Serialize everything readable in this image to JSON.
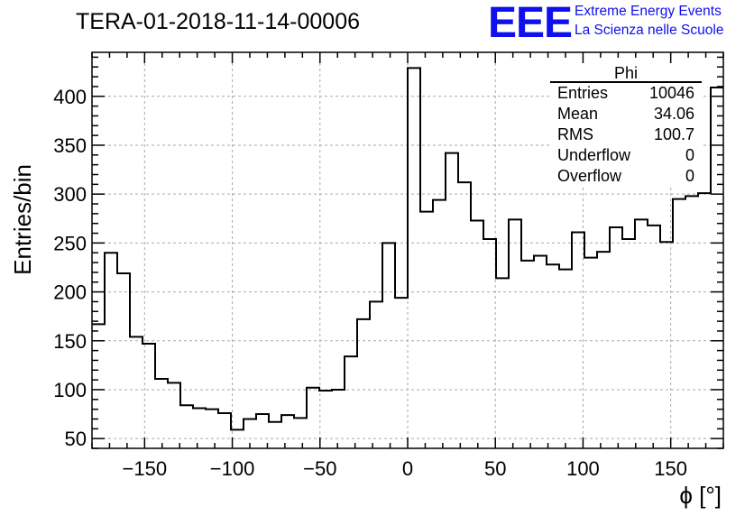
{
  "chart_data": {
    "type": "histogram",
    "title": "TERA-01-2018-11-14-00006",
    "xlabel": "ϕ [°]",
    "ylabel": "Entries/bin",
    "xlim": [
      -180,
      180
    ],
    "ylim": [
      40,
      445
    ],
    "grid": true,
    "bin_edges_start": -180,
    "bin_width": 7.2,
    "values": [
      167,
      240,
      219,
      154,
      147,
      111,
      107,
      84,
      81,
      80,
      76,
      59,
      70,
      75,
      67,
      74,
      71,
      102,
      99,
      100,
      134,
      172,
      190,
      250,
      194,
      429,
      282,
      294,
      342,
      312,
      273,
      254,
      214,
      274,
      232,
      237,
      228,
      223,
      261,
      235,
      241,
      266,
      254,
      274,
      268,
      251,
      295,
      298,
      301,
      409
    ],
    "x_ticks": [
      {
        "value": -150,
        "label": "−150"
      },
      {
        "value": -100,
        "label": "−100"
      },
      {
        "value": -50,
        "label": "−50"
      },
      {
        "value": 0,
        "label": "0"
      },
      {
        "value": 50,
        "label": "50"
      },
      {
        "value": 100,
        "label": "100"
      },
      {
        "value": 150,
        "label": "150"
      }
    ],
    "y_ticks": [
      {
        "value": 50,
        "label": "50"
      },
      {
        "value": 100,
        "label": "100"
      },
      {
        "value": 150,
        "label": "150"
      },
      {
        "value": 200,
        "label": "200"
      },
      {
        "value": 250,
        "label": "250"
      },
      {
        "value": 300,
        "label": "300"
      },
      {
        "value": 350,
        "label": "350"
      },
      {
        "value": 400,
        "label": "400"
      }
    ]
  },
  "logo": {
    "mark": "EEE",
    "line1": "Extreme Energy Events",
    "line2": "La Scienza nelle Scuole",
    "color": "#1010ee"
  },
  "stats": {
    "name": "Phi",
    "rows": [
      {
        "label": "Entries",
        "value": "10046"
      },
      {
        "label": "Mean",
        "value": "34.06"
      },
      {
        "label": "RMS",
        "value": "100.7"
      },
      {
        "label": "Underflow",
        "value": "0"
      },
      {
        "label": "Overflow",
        "value": "0"
      }
    ]
  }
}
